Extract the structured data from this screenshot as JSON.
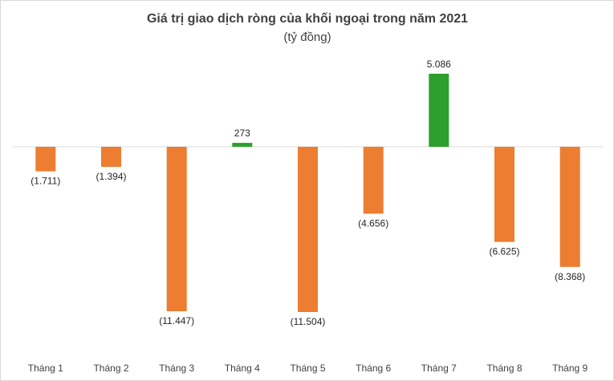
{
  "chart_data": {
    "type": "bar",
    "title": "Giá trị giao dịch ròng của khối ngoại trong năm 2021",
    "subtitle": "(tỷ đồng)",
    "categories": [
      "Tháng 1",
      "Tháng 2",
      "Tháng 3",
      "Tháng 4",
      "Tháng 5",
      "Tháng 6",
      "Tháng 7",
      "Tháng 8",
      "Tháng 9"
    ],
    "values": [
      -1711,
      -1394,
      -11447,
      273,
      -11504,
      -4656,
      5086,
      -6625,
      -8368
    ],
    "data_labels": [
      "(1.711)",
      "(1.394)",
      "(11.447)",
      "273",
      "(11.504)",
      "(4.656)",
      "5.086",
      "(6.625)",
      "(8.368)"
    ],
    "xlabel": "",
    "ylabel": "",
    "ylim": [
      -12500,
      7000
    ],
    "grid": false,
    "legend": "none",
    "colors": {
      "positive": "#2ca02c",
      "negative": "#ed7d31",
      "zero_line": "#d9d9d9"
    }
  }
}
